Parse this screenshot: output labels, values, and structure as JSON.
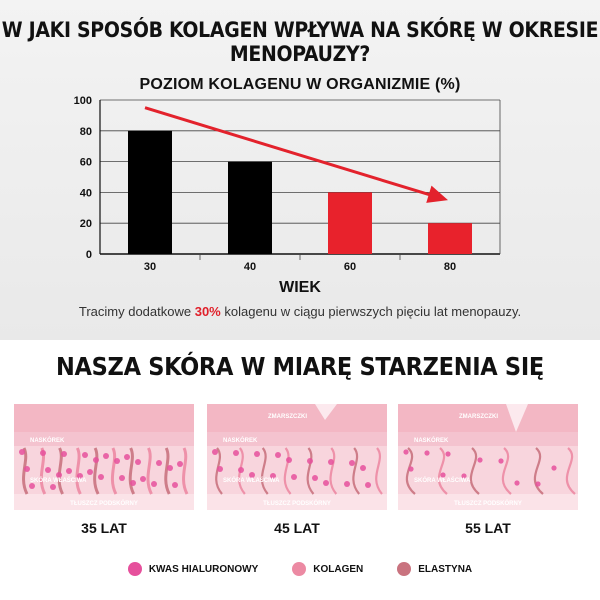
{
  "header": {
    "title": "W JAKI SPOSÓB KOLAGEN WPŁYWA NA SKÓRĘ W OKRESIE MENOPAUZY?"
  },
  "chart_data": {
    "type": "bar",
    "title": "POZIOM KOLAGENU W ORGANIZMIE (%)",
    "xlabel": "WIEK",
    "ylabel": "",
    "categories": [
      "30",
      "40",
      "60",
      "80"
    ],
    "values": [
      80,
      60,
      40,
      20
    ],
    "bar_colors": [
      "#000000",
      "#000000",
      "#e8222c",
      "#e8222c"
    ],
    "ylim": [
      0,
      100
    ],
    "yticks": [
      "0",
      "20",
      "40",
      "60",
      "80",
      "100"
    ],
    "grid": true,
    "trend_arrow": {
      "color": "#e3222c",
      "from_value": 95,
      "to_value": 35
    }
  },
  "caption": {
    "before": "Tracimy dodatkowe ",
    "highlight": "30%",
    "after": " kolagenu w ciągu pierwszych pięciu lat menopauzy."
  },
  "skin": {
    "title": "NASZA SKÓRA W MIARĘ STARZENIA SIĘ",
    "layers": {
      "epidermis": "NASKÓREK",
      "dermis": "SKÓRA WŁAŚCIWA",
      "fat": "TŁUSZCZ PODSKÓRNY",
      "wrinkle": "ZMARSZCZKI"
    },
    "panels": [
      {
        "age": "35 LAT"
      },
      {
        "age": "45 LAT"
      },
      {
        "age": "55 LAT"
      }
    ]
  },
  "legend": [
    {
      "label": "KWAS HIALURONOWY",
      "color": "#e6509c"
    },
    {
      "label": "KOLAGEN",
      "color": "#ec8aa3"
    },
    {
      "label": "ELASTYNA",
      "color": "#c9737f"
    }
  ]
}
